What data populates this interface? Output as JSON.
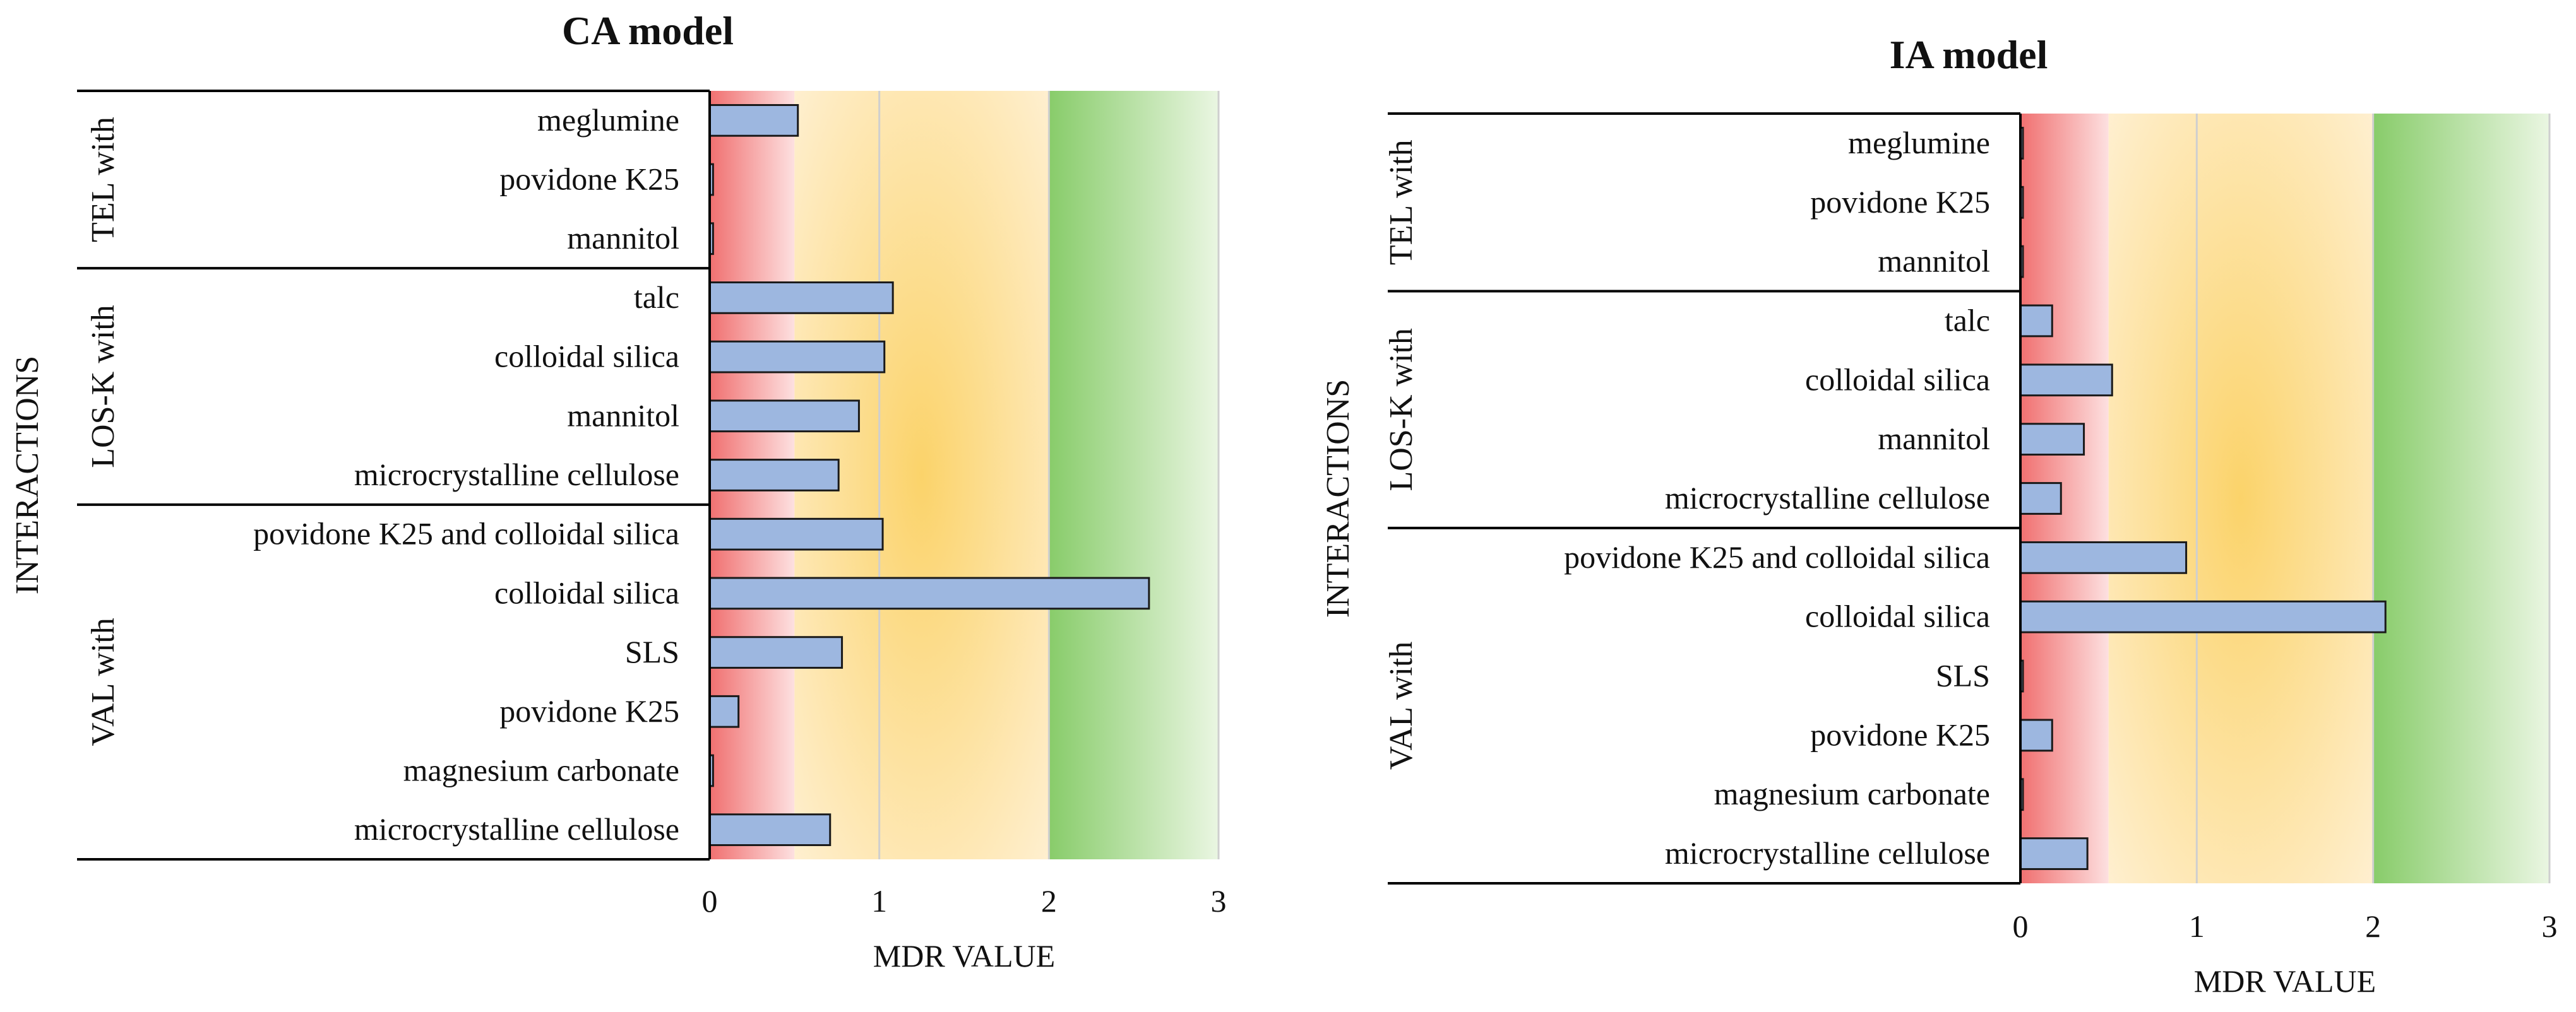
{
  "colors": {
    "bar_fill": "#9db7e0",
    "bar_stroke": "#1a1a1a",
    "zone_red": "#f27a7a",
    "zone_orange": "#fbd77a",
    "zone_green": "#8ecf72",
    "grid": "#cfcfcf",
    "axis": "#000000"
  },
  "chart_data": [
    {
      "type": "bar",
      "orientation": "horizontal",
      "title": "CA model",
      "xlabel": "MDR VALUE",
      "ylabel": "INTERACTIONS",
      "xlim": [
        0,
        3
      ],
      "xticks": [
        "0",
        "1",
        "2",
        "3"
      ],
      "grid": true,
      "zones": [
        {
          "from": 0,
          "to": 0.5,
          "color": "red"
        },
        {
          "from": 0.5,
          "to": 2,
          "color": "orange"
        },
        {
          "from": 2,
          "to": 3,
          "color": "green"
        }
      ],
      "groups": [
        {
          "label": "TEL with",
          "items": [
            {
              "label": "meglumine",
              "value": 0.52
            },
            {
              "label": "povidone K25",
              "value": 0.02
            },
            {
              "label": "mannitol",
              "value": 0.02
            }
          ]
        },
        {
          "label": "LOS-K with",
          "items": [
            {
              "label": "talc",
              "value": 1.08
            },
            {
              "label": "colloidal silica",
              "value": 1.03
            },
            {
              "label": "mannitol",
              "value": 0.88
            },
            {
              "label": "microcrystalline cellulose",
              "value": 0.76
            }
          ]
        },
        {
          "label": "VAL with",
          "items": [
            {
              "label": "povidone K25 and colloidal silica",
              "value": 1.02
            },
            {
              "label": "colloidal silica",
              "value": 2.59
            },
            {
              "label": "SLS",
              "value": 0.78
            },
            {
              "label": "povidone K25",
              "value": 0.17
            },
            {
              "label": "magnesium carbonate",
              "value": 0.02
            },
            {
              "label": "microcrystalline cellulose",
              "value": 0.71
            }
          ]
        }
      ]
    },
    {
      "type": "bar",
      "orientation": "horizontal",
      "title": "IA model",
      "xlabel": "MDR VALUE",
      "ylabel": "INTERACTIONS",
      "xlim": [
        0,
        3
      ],
      "xticks": [
        "0",
        "1",
        "2",
        "3"
      ],
      "grid": true,
      "zones": [
        {
          "from": 0,
          "to": 0.5,
          "color": "red"
        },
        {
          "from": 0.5,
          "to": 2,
          "color": "orange"
        },
        {
          "from": 2,
          "to": 3,
          "color": "green"
        }
      ],
      "groups": [
        {
          "label": "TEL with",
          "items": [
            {
              "label": "meglumine",
              "value": 0.01
            },
            {
              "label": "povidone K25",
              "value": 0.01
            },
            {
              "label": "mannitol",
              "value": 0.005
            }
          ]
        },
        {
          "label": "LOS-K with",
          "items": [
            {
              "label": "talc",
              "value": 0.18
            },
            {
              "label": "colloidal silica",
              "value": 0.52
            },
            {
              "label": "mannitol",
              "value": 0.36
            },
            {
              "label": "microcrystalline cellulose",
              "value": 0.23
            }
          ]
        },
        {
          "label": "VAL with",
          "items": [
            {
              "label": "povidone K25 and colloidal silica",
              "value": 0.94
            },
            {
              "label": "colloidal silica",
              "value": 2.07
            },
            {
              "label": "SLS",
              "value": 0.005
            },
            {
              "label": "povidone K25",
              "value": 0.18
            },
            {
              "label": "magnesium carbonate",
              "value": 0.005
            },
            {
              "label": "microcrystalline cellulose",
              "value": 0.38
            }
          ]
        }
      ]
    }
  ]
}
